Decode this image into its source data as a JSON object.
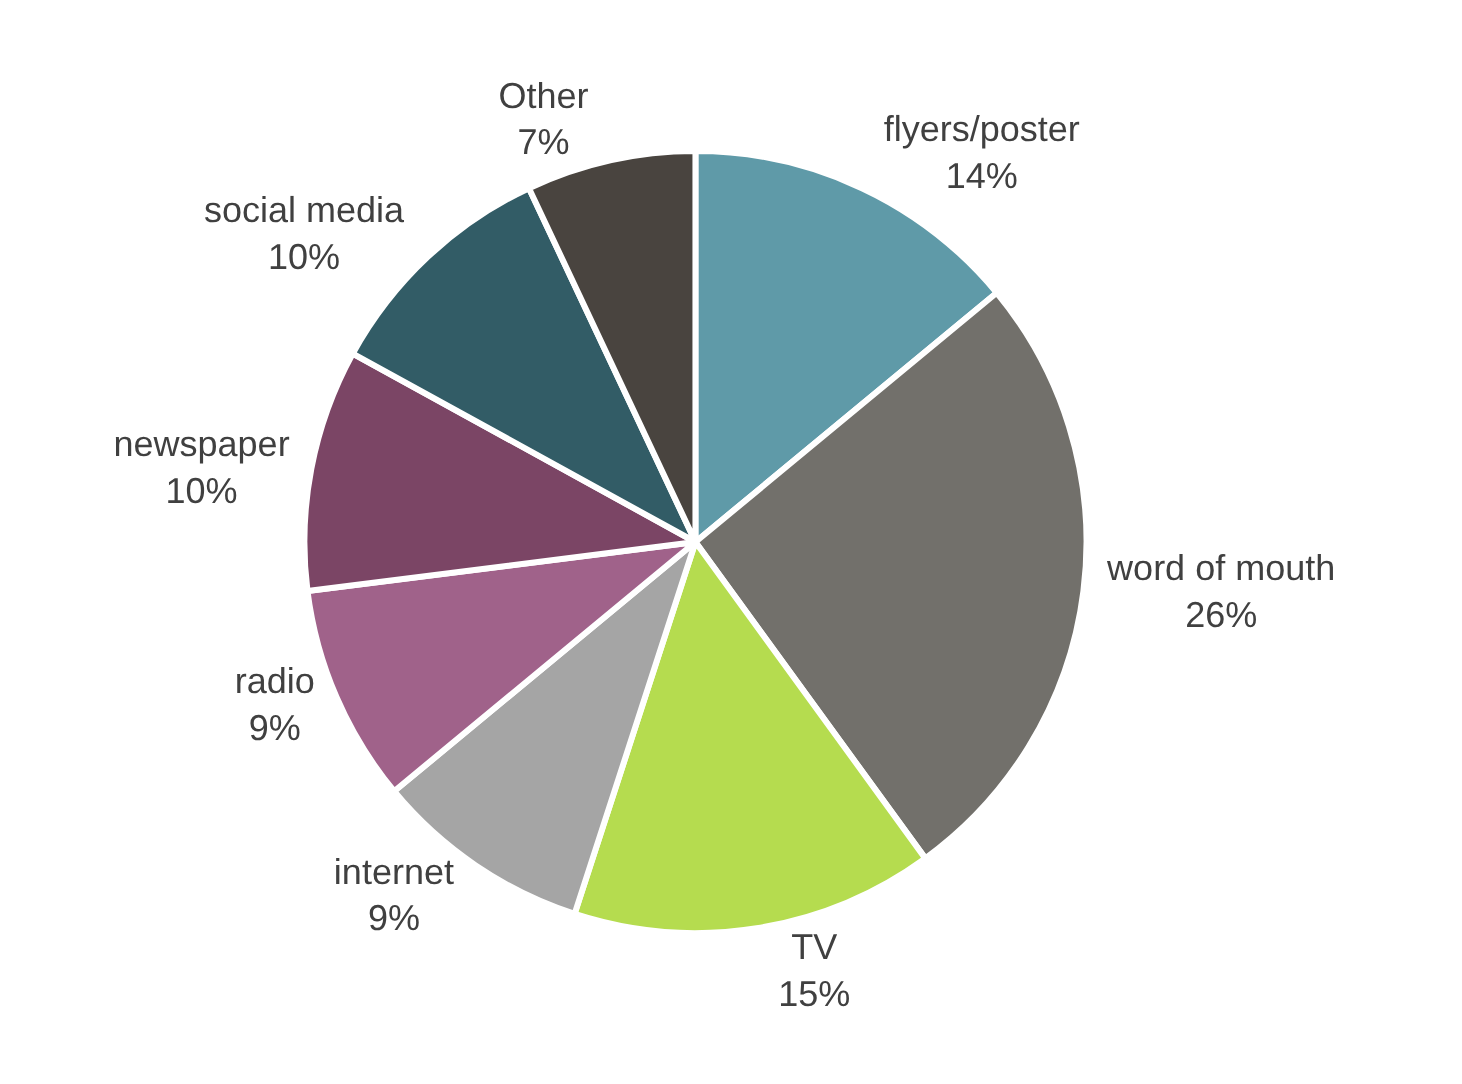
{
  "chart_data": {
    "type": "pie",
    "categories": [
      "flyers/poster",
      "word of mouth",
      "TV",
      "internet",
      "radio",
      "newspaper",
      "social media",
      "Other"
    ],
    "values": [
      14,
      26,
      15,
      9,
      9,
      10,
      10,
      7
    ],
    "value_labels": [
      "14%",
      "26%",
      "15%",
      "9%",
      "9%",
      "10%",
      "10%",
      "7%"
    ],
    "colors": [
      "#5f9aa8",
      "#72706b",
      "#b5dc4f",
      "#a5a5a5",
      "#a0628a",
      "#7b4565",
      "#325c66",
      "#49443f"
    ],
    "legend": false
  }
}
